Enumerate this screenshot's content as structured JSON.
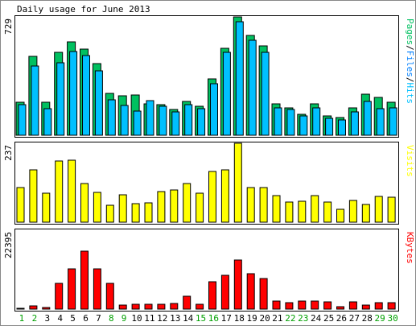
{
  "title": "Daily usage for June 2013",
  "colors": {
    "background": "#ffffff",
    "pages": "#00c060",
    "files": "#0080ff",
    "hits": "#00c0ff",
    "visits": "#ffff00",
    "kbytes": "#ff0000",
    "weekend_label": "#00a000",
    "weekday_label": "#000000"
  },
  "days": [
    "1",
    "2",
    "3",
    "4",
    "5",
    "6",
    "7",
    "8",
    "9",
    "10",
    "11",
    "12",
    "13",
    "14",
    "15",
    "16",
    "17",
    "18",
    "19",
    "20",
    "21",
    "22",
    "23",
    "24",
    "25",
    "26",
    "27",
    "28",
    "29",
    "30"
  ],
  "weekend_days": [
    1,
    2,
    8,
    9,
    15,
    16,
    22,
    23,
    29,
    30
  ],
  "chart_data": [
    {
      "type": "bar",
      "name": "hits-files-panel",
      "ymax_label": "729",
      "ylim": [
        0,
        729
      ],
      "legend": {
        "parts": [
          {
            "text": "Pages",
            "color": "#00c060"
          },
          {
            "text": "/",
            "color": "#000000"
          },
          {
            "text": "Files",
            "color": "#0080ff"
          },
          {
            "text": "/",
            "color": "#000000"
          },
          {
            "text": "Hits",
            "color": "#00c0ff"
          }
        ],
        "placement": "right"
      },
      "series": [
        {
          "name": "Hits",
          "color": "#00c060",
          "values": [
            205,
            484,
            205,
            511,
            573,
            532,
            443,
            257,
            245,
            248,
            194,
            190,
            158,
            207,
            178,
            349,
            534,
            729,
            616,
            548,
            194,
            171,
            128,
            194,
            120,
            110,
            170,
            252,
            231,
            203
          ]
        },
        {
          "name": "Files",
          "color": "#00c0ff",
          "values": [
            186,
            426,
            166,
            444,
            516,
            489,
            398,
            217,
            184,
            150,
            215,
            178,
            146,
            188,
            163,
            316,
            513,
            697,
            585,
            509,
            171,
            158,
            121,
            171,
            105,
            96,
            143,
            209,
            162,
            170
          ]
        }
      ]
    },
    {
      "type": "bar",
      "name": "visits-panel",
      "ymax_label": "237",
      "ylim": [
        0,
        237
      ],
      "legend": {
        "parts": [
          {
            "text": "Visits",
            "color": "#ffff00"
          }
        ],
        "placement": "right"
      },
      "series": [
        {
          "name": "Visits",
          "color": "#ffff00",
          "values": [
            104,
            156,
            88,
            184,
            186,
            117,
            90,
            50,
            82,
            56,
            58,
            92,
            96,
            116,
            87,
            152,
            157,
            237,
            103,
            104,
            81,
            61,
            62,
            81,
            61,
            39,
            66,
            54,
            77,
            74
          ]
        }
      ]
    },
    {
      "type": "bar",
      "name": "kbytes-panel",
      "ymax_label": "22395",
      "ylim": [
        0,
        22395
      ],
      "legend": {
        "parts": [
          {
            "text": "KBytes",
            "color": "#ff0000"
          }
        ],
        "placement": "right"
      },
      "series": [
        {
          "name": "KBytes",
          "color": "#ff0000",
          "values": [
            320,
            830,
            420,
            7240,
            11500,
            16400,
            11500,
            7240,
            1220,
            1290,
            1290,
            1470,
            1500,
            3600,
            1460,
            7700,
            9500,
            14000,
            10000,
            8760,
            2330,
            1890,
            2330,
            2330,
            2100,
            700,
            1950,
            1200,
            1780,
            1780
          ]
        }
      ]
    }
  ]
}
